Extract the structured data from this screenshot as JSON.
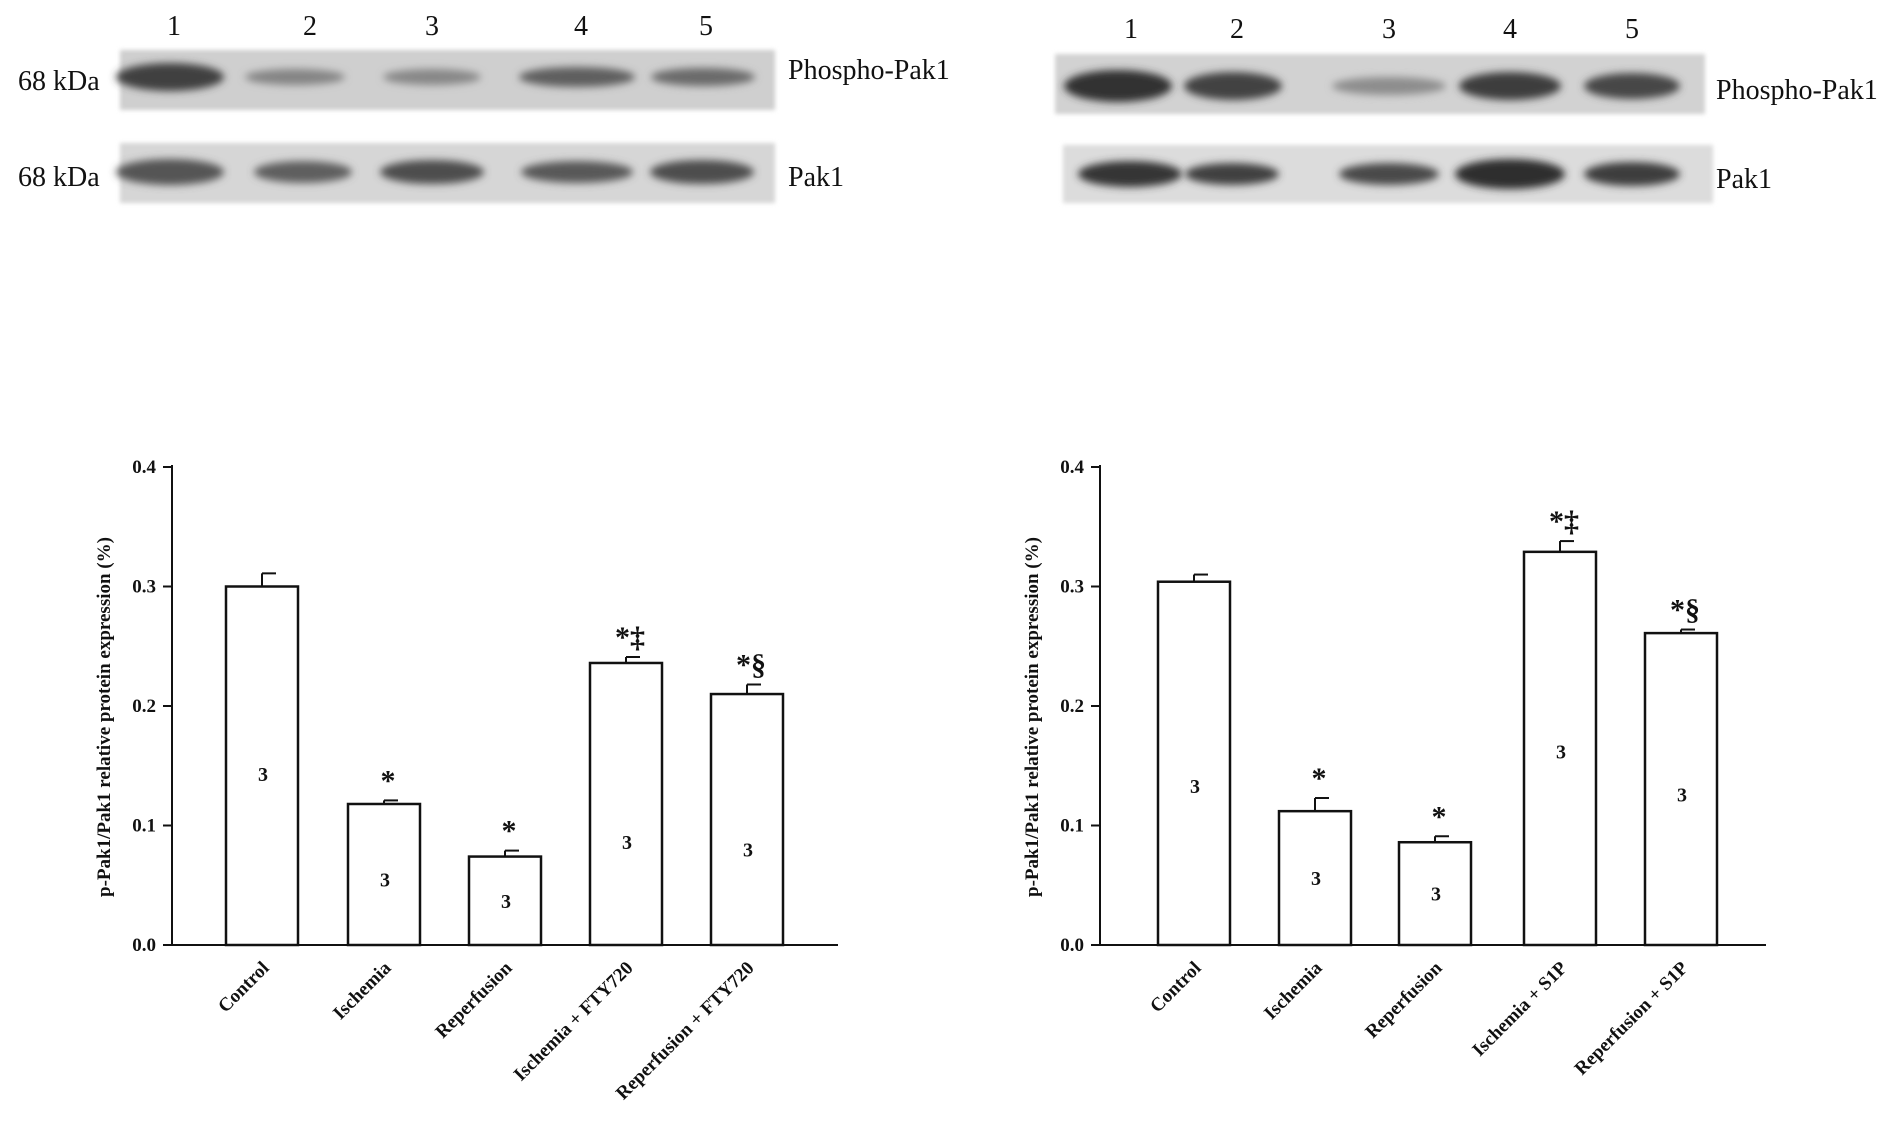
{
  "blots": [
    {
      "lane_numbers": [
        "1",
        "2",
        "3",
        "4",
        "5"
      ],
      "rows": [
        {
          "size": "68 kDa",
          "label": "Phospho-Pak1",
          "intensities": [
            0.8,
            0.4,
            0.38,
            0.62,
            0.55
          ]
        },
        {
          "size": "68 kDa",
          "label": "Pak1",
          "intensities": [
            0.68,
            0.62,
            0.72,
            0.66,
            0.72
          ]
        }
      ]
    },
    {
      "lane_numbers": [
        "1",
        "2",
        "3",
        "4",
        "5"
      ],
      "rows": [
        {
          "size": "",
          "label": "Phospho-Pak1",
          "intensities": [
            0.88,
            0.78,
            0.35,
            0.82,
            0.76
          ]
        },
        {
          "size": "",
          "label": "Pak1",
          "intensities": [
            0.86,
            0.8,
            0.74,
            0.9,
            0.82
          ]
        }
      ]
    }
  ],
  "chart_data": [
    {
      "type": "bar",
      "ylabel": "p-Pak1/Pak1 relative protein expression (%)",
      "ylim": [
        0,
        0.4
      ],
      "yticks": [
        "0.0",
        "0.1",
        "0.2",
        "0.3",
        "0.4"
      ],
      "categories": [
        "Control",
        "Ischemia",
        "Reperfusion",
        "Ischemia + FTY720",
        "Reperfusion + FTY720"
      ],
      "values": [
        0.3,
        0.118,
        0.074,
        0.236,
        0.21
      ],
      "errors": [
        0.011,
        0.003,
        0.005,
        0.005,
        0.008
      ],
      "n_labels": [
        "3",
        "3",
        "3",
        "3",
        "3"
      ],
      "n_label_positions": [
        0.143,
        0.055,
        0.037,
        0.086,
        0.08
      ],
      "significance": [
        "",
        "*",
        "*",
        "*‡",
        "*§"
      ]
    },
    {
      "type": "bar",
      "ylabel": "p-Pak1/Pak1 relative protein expression (%)",
      "ylim": [
        0,
        0.4
      ],
      "yticks": [
        "0.0",
        "0.1",
        "0.2",
        "0.3",
        "0.4"
      ],
      "categories": [
        "Control",
        "Ischemia",
        "Reperfusion",
        "Ischemia + S1P",
        "Reperfusion + S1P"
      ],
      "values": [
        0.304,
        0.112,
        0.086,
        0.329,
        0.261
      ],
      "errors": [
        0.006,
        0.011,
        0.005,
        0.009,
        0.003
      ],
      "n_labels": [
        "3",
        "3",
        "3",
        "3",
        "3"
      ],
      "n_label_positions": [
        0.133,
        0.056,
        0.043,
        0.162,
        0.126
      ],
      "significance": [
        "",
        "*",
        "*",
        "*‡",
        "*§"
      ]
    }
  ]
}
